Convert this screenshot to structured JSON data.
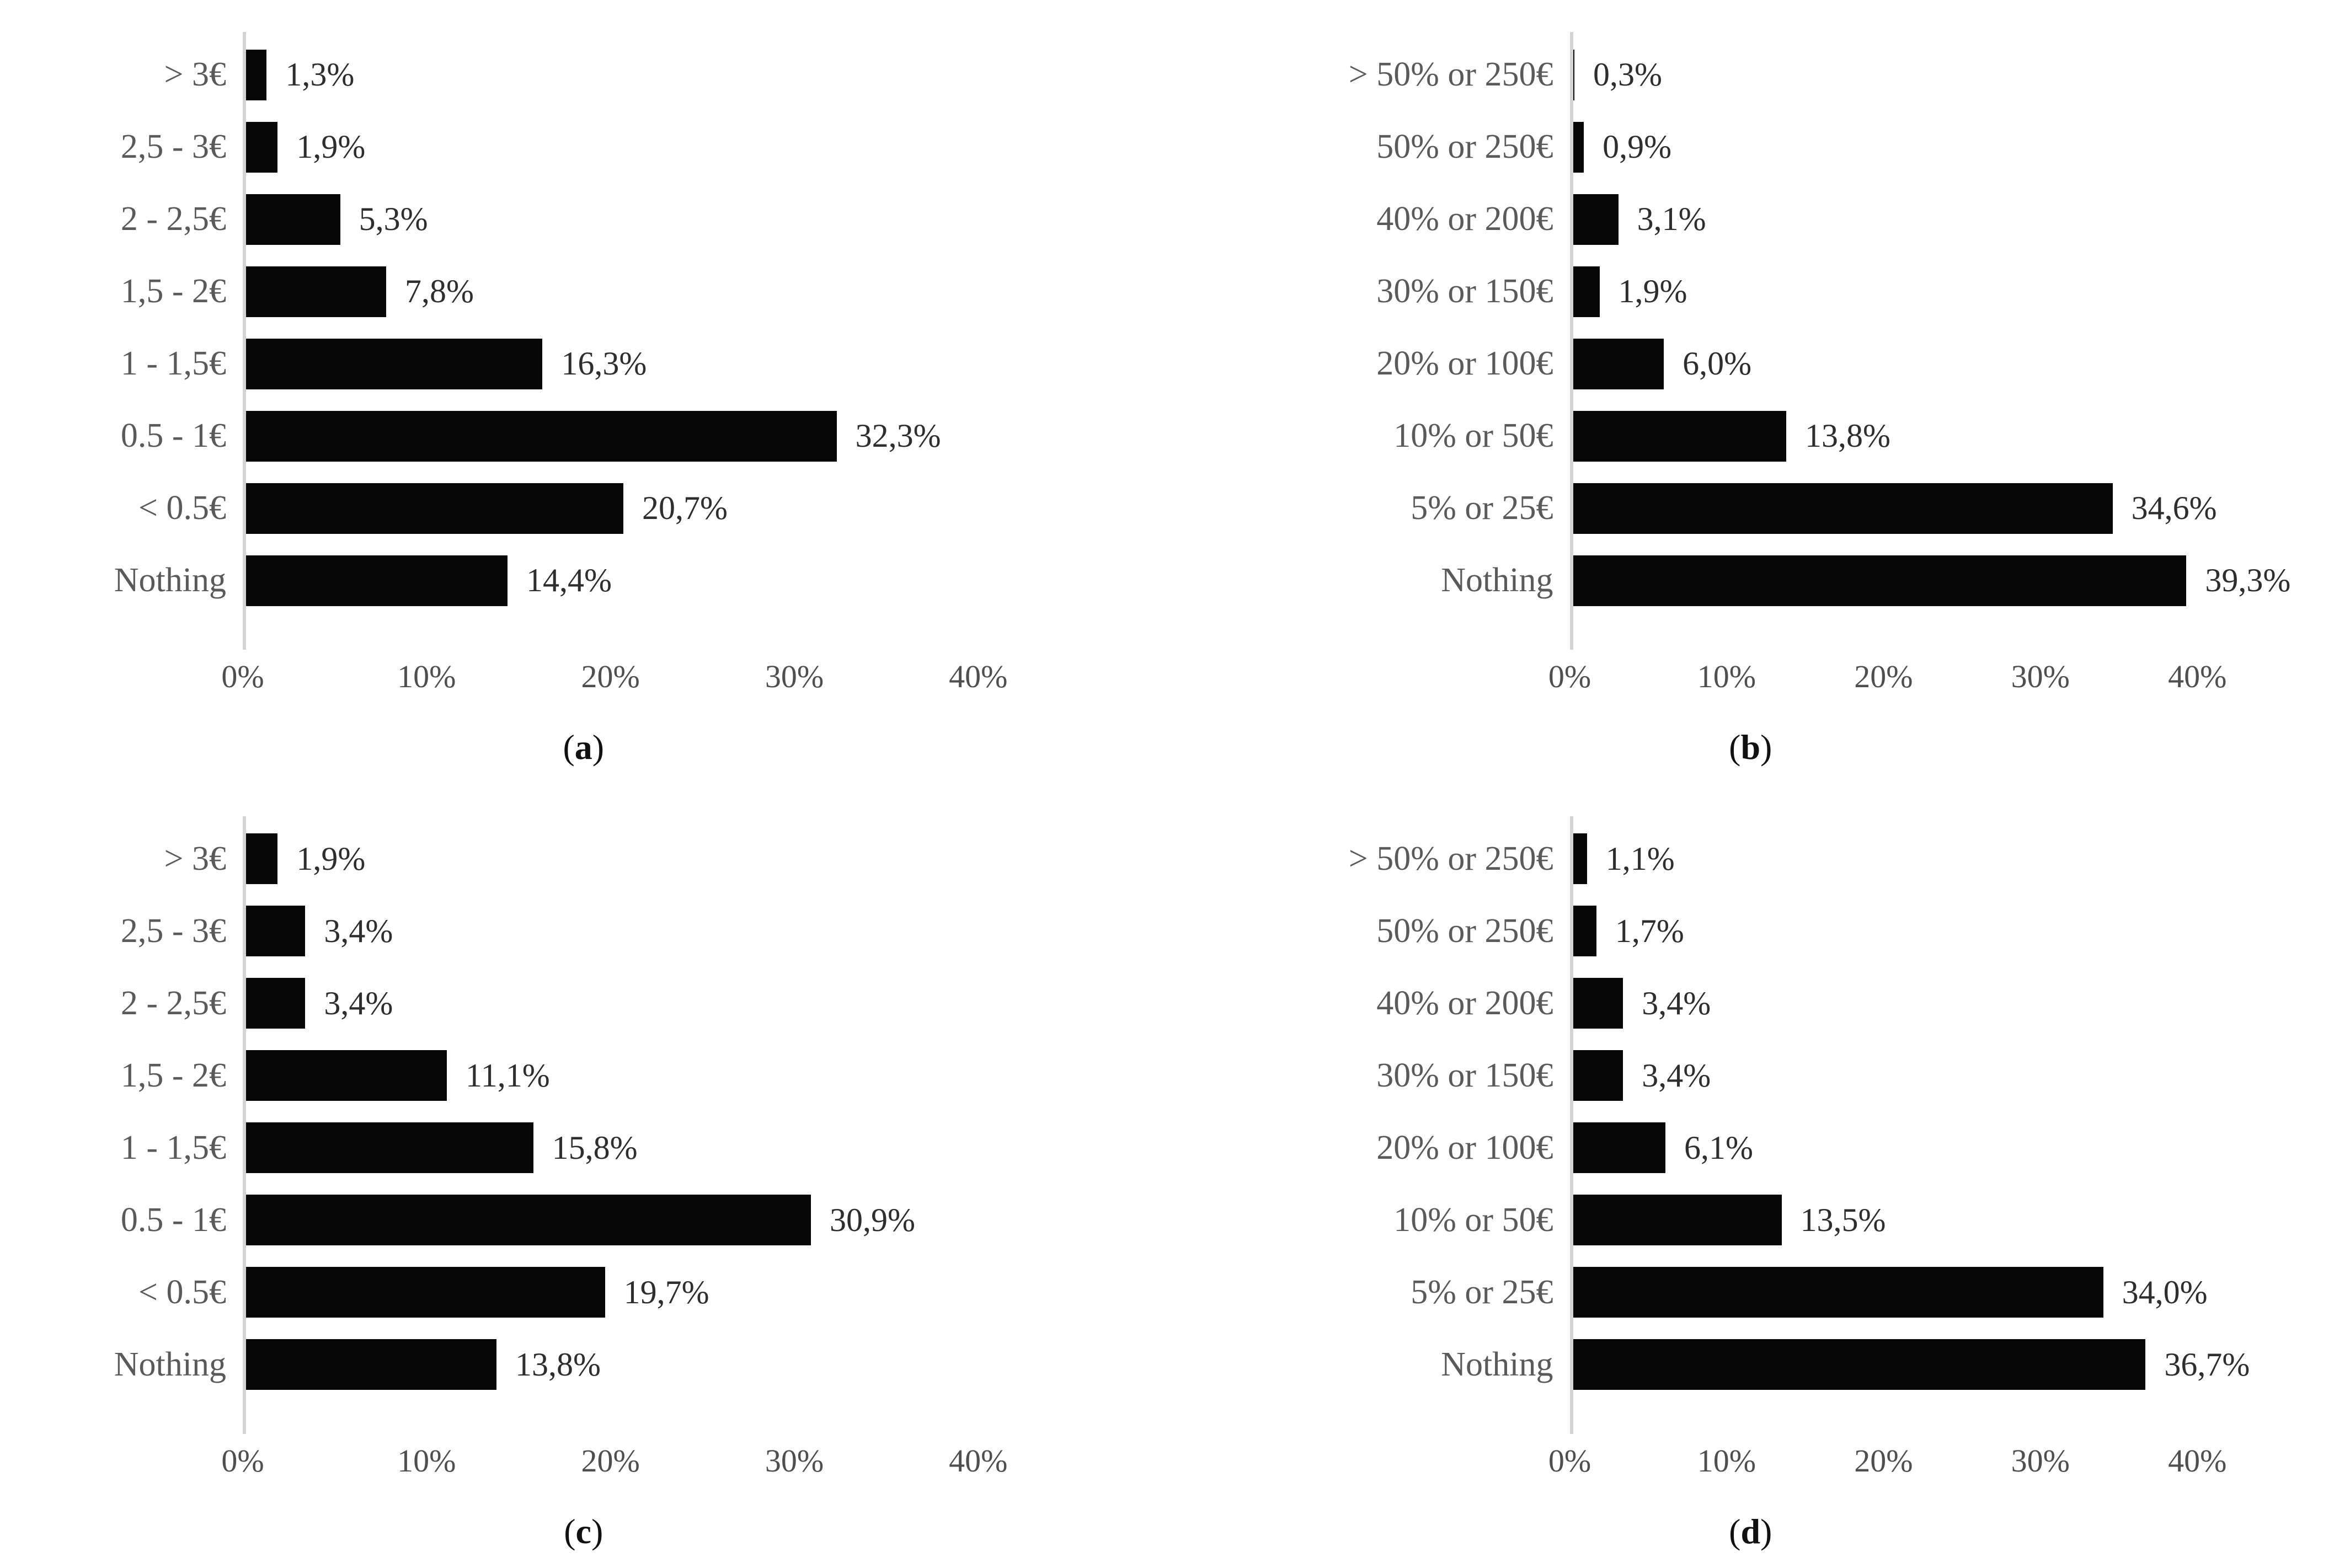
{
  "chart_data": [
    {
      "type": "bar",
      "orientation": "horizontal",
      "panel": "a",
      "caption": {
        "open": "(",
        "letter": "a",
        "close": ")"
      },
      "categories": [
        "> 3€",
        "2,5 - 3€",
        "2 - 2,5€",
        "1,5 - 2€",
        "1 - 1,5€",
        "0.5 - 1€",
        "< 0.5€",
        "Nothing"
      ],
      "values": [
        1.3,
        1.9,
        5.3,
        7.8,
        16.3,
        32.3,
        20.7,
        14.4
      ],
      "value_labels": [
        "1,3%",
        "1,9%",
        "5,3%",
        "7,8%",
        "16,3%",
        "32,3%",
        "20,7%",
        "14,4%"
      ],
      "x_ticks": [
        "0%",
        "10%",
        "20%",
        "30%",
        "40%"
      ],
      "xlim": [
        0,
        45
      ],
      "grid": false,
      "bar_color": "#070707"
    },
    {
      "type": "bar",
      "orientation": "horizontal",
      "panel": "b",
      "caption": {
        "open": "(",
        "letter": "b",
        "close": ")"
      },
      "categories": [
        "> 50% or 250€",
        "50% or 250€",
        "40% or 200€",
        "30% or 150€",
        "20% or 100€",
        "10% or 50€",
        "5% or 25€",
        "Nothing"
      ],
      "values": [
        0.3,
        0.9,
        3.1,
        1.9,
        6.0,
        13.8,
        34.6,
        39.3
      ],
      "value_labels": [
        "0,3%",
        "0,9%",
        "3,1%",
        "1,9%",
        "6,0%",
        "13,8%",
        "34,6%",
        "39,3%"
      ],
      "x_ticks": [
        "0%",
        "10%",
        "20%",
        "30%",
        "40%"
      ],
      "xlim": [
        0,
        45
      ],
      "grid": false,
      "bar_color": "#070707"
    },
    {
      "type": "bar",
      "orientation": "horizontal",
      "panel": "c",
      "caption": {
        "open": "(",
        "letter": "c",
        "close": ")"
      },
      "categories": [
        "> 3€",
        "2,5 - 3€",
        "2 - 2,5€",
        "1,5 - 2€",
        "1 - 1,5€",
        "0.5 - 1€",
        "< 0.5€",
        "Nothing"
      ],
      "values": [
        1.9,
        3.4,
        3.4,
        11.1,
        15.8,
        30.9,
        19.7,
        13.8
      ],
      "value_labels": [
        "1,9%",
        "3,4%",
        "3,4%",
        "11,1%",
        "15,8%",
        "30,9%",
        "19,7%",
        "13,8%"
      ],
      "x_ticks": [
        "0%",
        "10%",
        "20%",
        "30%",
        "40%"
      ],
      "xlim": [
        0,
        45
      ],
      "grid": false,
      "bar_color": "#070707"
    },
    {
      "type": "bar",
      "orientation": "horizontal",
      "panel": "d",
      "caption": {
        "open": "(",
        "letter": "d",
        "close": ")"
      },
      "categories": [
        "> 50% or 250€",
        "50% or 250€",
        "40% or 200€",
        "30% or 150€",
        "20% or 100€",
        "10% or 50€",
        "5% or 25€",
        "Nothing"
      ],
      "values": [
        1.1,
        1.7,
        3.4,
        3.4,
        6.1,
        13.5,
        34.0,
        36.7
      ],
      "value_labels": [
        "1,1%",
        "1,7%",
        "3,4%",
        "3,4%",
        "6,1%",
        "13,5%",
        "34,0%",
        "36,7%"
      ],
      "x_ticks": [
        "0%",
        "10%",
        "20%",
        "30%",
        "40%"
      ],
      "xlim": [
        0,
        45
      ],
      "grid": false,
      "bar_color": "#070707"
    }
  ],
  "styles": {
    "bar_color": "#070707",
    "category_label_color": "#5a5a5a",
    "value_label_color": "#2e2e2e",
    "tick_label_color": "#4f4f4f",
    "axis_line_color": "#d4d4d4",
    "background": "#ffffff"
  }
}
